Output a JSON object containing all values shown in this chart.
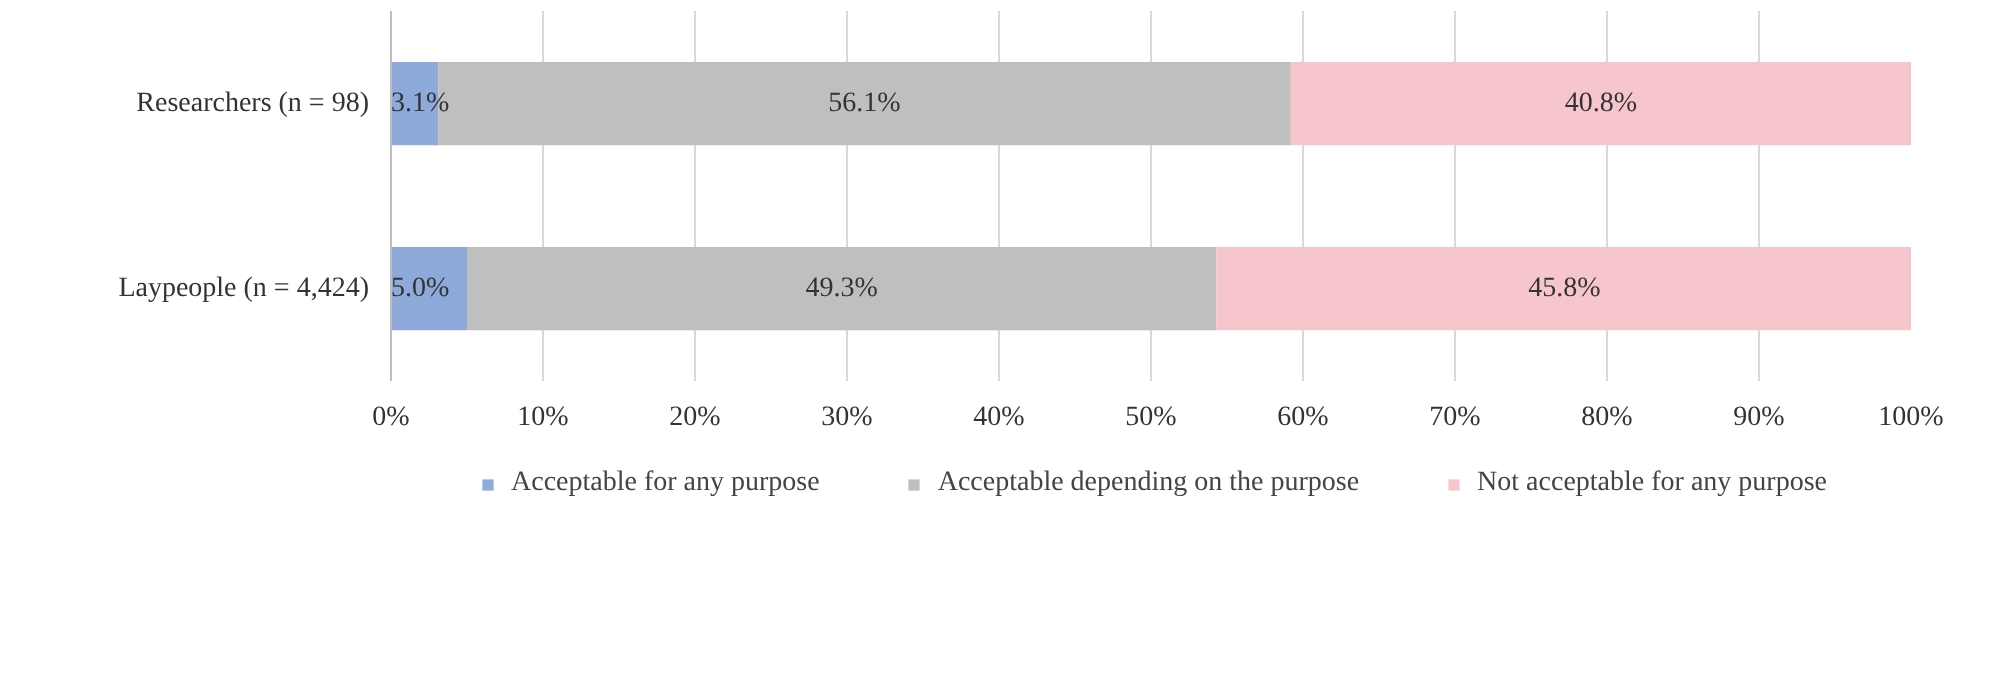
{
  "chart_data": {
    "type": "bar",
    "orientation": "horizontal",
    "stacked": true,
    "categories": [
      "Researchers (n = 98)",
      "Laypeople (n = 4,424)"
    ],
    "series": [
      {
        "name": "Acceptable for any purpose",
        "color": "#8eaadb",
        "values": [
          3.1,
          5.0
        ],
        "value_labels": [
          "3.1%",
          "5.0%"
        ]
      },
      {
        "name": "Acceptable depending on the purpose",
        "color": "#bfbfbf",
        "values": [
          56.1,
          49.3
        ],
        "value_labels": [
          "56.1%",
          "49.3%"
        ]
      },
      {
        "name": "Not acceptable for any purpose",
        "color": "#f7c6cc",
        "values": [
          40.8,
          45.8
        ],
        "value_labels": [
          "40.8%",
          "45.8%"
        ]
      }
    ],
    "xlim": [
      0,
      100
    ],
    "xticks": [
      {
        "value": 0,
        "label": "0%"
      },
      {
        "value": 10,
        "label": "10%"
      },
      {
        "value": 20,
        "label": "20%"
      },
      {
        "value": 30,
        "label": "30%"
      },
      {
        "value": 40,
        "label": "40%"
      },
      {
        "value": 50,
        "label": "50%"
      },
      {
        "value": 60,
        "label": "60%"
      },
      {
        "value": 70,
        "label": "70%"
      },
      {
        "value": 80,
        "label": "80%"
      },
      {
        "value": 90,
        "label": "90%"
      },
      {
        "value": 100,
        "label": "100%"
      }
    ],
    "grid": "x",
    "legend": "bottom"
  }
}
